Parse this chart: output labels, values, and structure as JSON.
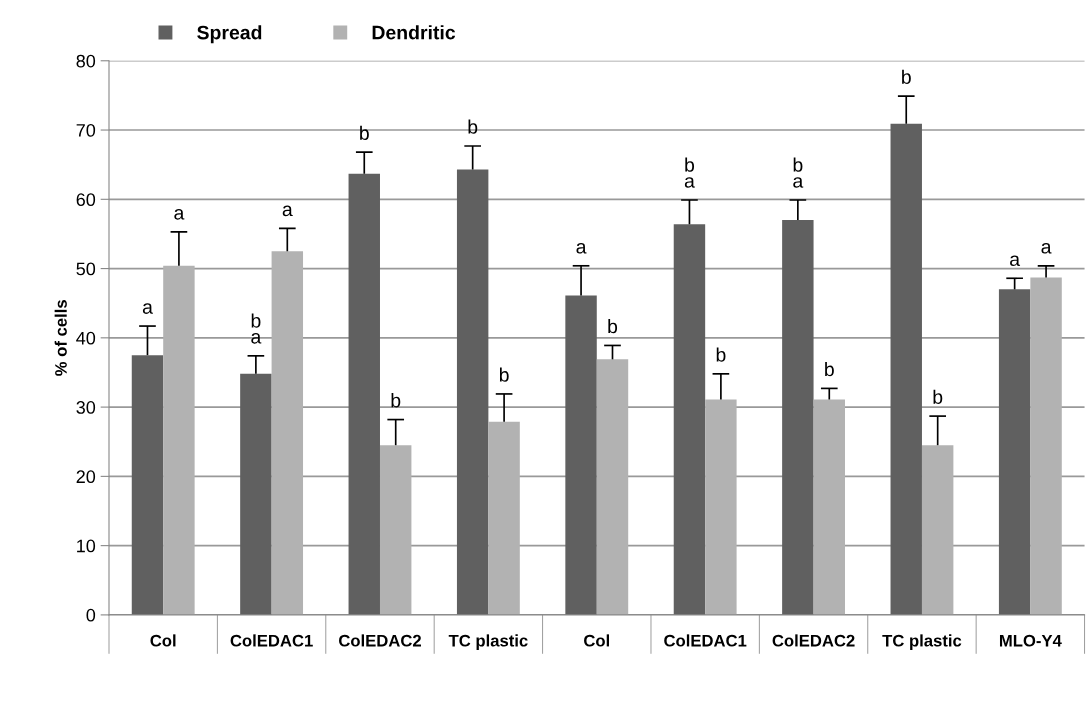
{
  "chart_data": {
    "type": "bar",
    "ylabel": "% of cells",
    "categories": [
      "Col",
      "ColEDAC1",
      "ColEDAC2",
      "TC plastic",
      "Col",
      "ColEDAC1",
      "ColEDAC2",
      "TC plastic",
      "MLO-Y4"
    ],
    "series": [
      {
        "name": "Spread",
        "color": "#606060",
        "values": [
          37.5,
          34.8,
          63.7,
          64.3,
          46.1,
          56.4,
          57.0,
          70.9,
          47.0
        ],
        "errors": [
          [
            37.5,
            41.7
          ],
          [
            34.8,
            37.4
          ],
          [
            63.7,
            66.8
          ],
          [
            64.3,
            67.7
          ],
          [
            46.1,
            50.4
          ],
          [
            56.4,
            59.9
          ],
          [
            57.0,
            59.9
          ],
          [
            70.9,
            74.9
          ],
          [
            47.0,
            48.6
          ]
        ],
        "value_labels": [
          "a",
          "b\na",
          "b",
          "b",
          "a",
          "b\na",
          "b\na",
          "b",
          "a"
        ]
      },
      {
        "name": "Dendritic",
        "color": "#b2b2b2",
        "values": [
          50.4,
          52.5,
          24.5,
          27.9,
          36.9,
          31.1,
          31.1,
          24.5,
          48.7
        ],
        "errors": [
          [
            50.4,
            55.3
          ],
          [
            52.5,
            55.8
          ],
          [
            24.5,
            28.2
          ],
          [
            27.9,
            31.9
          ],
          [
            36.9,
            38.9
          ],
          [
            31.1,
            34.8
          ],
          [
            31.1,
            32.7
          ],
          [
            24.5,
            28.7
          ],
          [
            48.7,
            50.4
          ]
        ],
        "value_labels": [
          "a",
          "a",
          "b",
          "b",
          "b",
          "b",
          "b",
          "b",
          "a"
        ]
      }
    ],
    "ylim": [
      0,
      80
    ],
    "yticks": [
      0,
      10,
      20,
      30,
      40,
      50,
      60,
      70,
      80
    ],
    "grid": "y",
    "legend": "top left"
  }
}
